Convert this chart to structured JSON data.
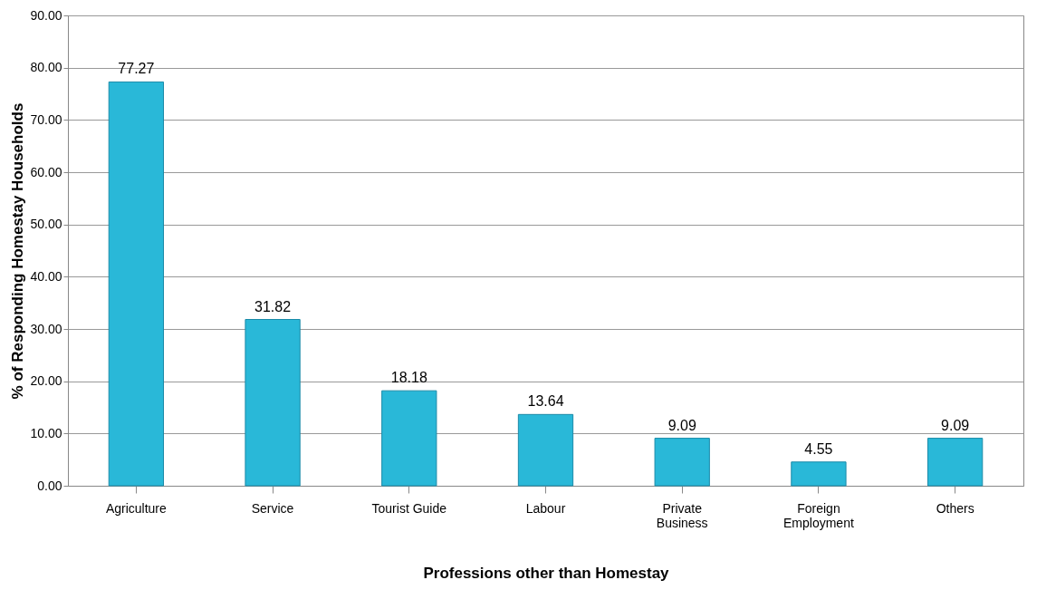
{
  "chart_data": {
    "type": "bar",
    "xlabel": "Professions other than Homestay",
    "ylabel": "% of Responding Homestay  Households",
    "categories": [
      "Agriculture",
      "Service",
      "Tourist Guide",
      "Labour",
      "Private Business",
      "Foreign Employment",
      "Others"
    ],
    "values": [
      77.27,
      31.82,
      18.18,
      13.64,
      9.09,
      4.55,
      9.09
    ],
    "color": "#29b8d8",
    "ylim": [
      0,
      90
    ],
    "yticks": [
      {
        "value": 0,
        "label": "0.00"
      },
      {
        "value": 10,
        "label": "10.00"
      },
      {
        "value": 20,
        "label": "20.00"
      },
      {
        "value": 30,
        "label": "30.00"
      },
      {
        "value": 40,
        "label": "40.00"
      },
      {
        "value": 50,
        "label": "50.00"
      },
      {
        "value": 60,
        "label": "60.00"
      },
      {
        "value": 70,
        "label": "70.00"
      },
      {
        "value": 80,
        "label": "80.00"
      },
      {
        "value": 90,
        "label": "90.00"
      }
    ],
    "grid": "y",
    "data_labels": true
  }
}
